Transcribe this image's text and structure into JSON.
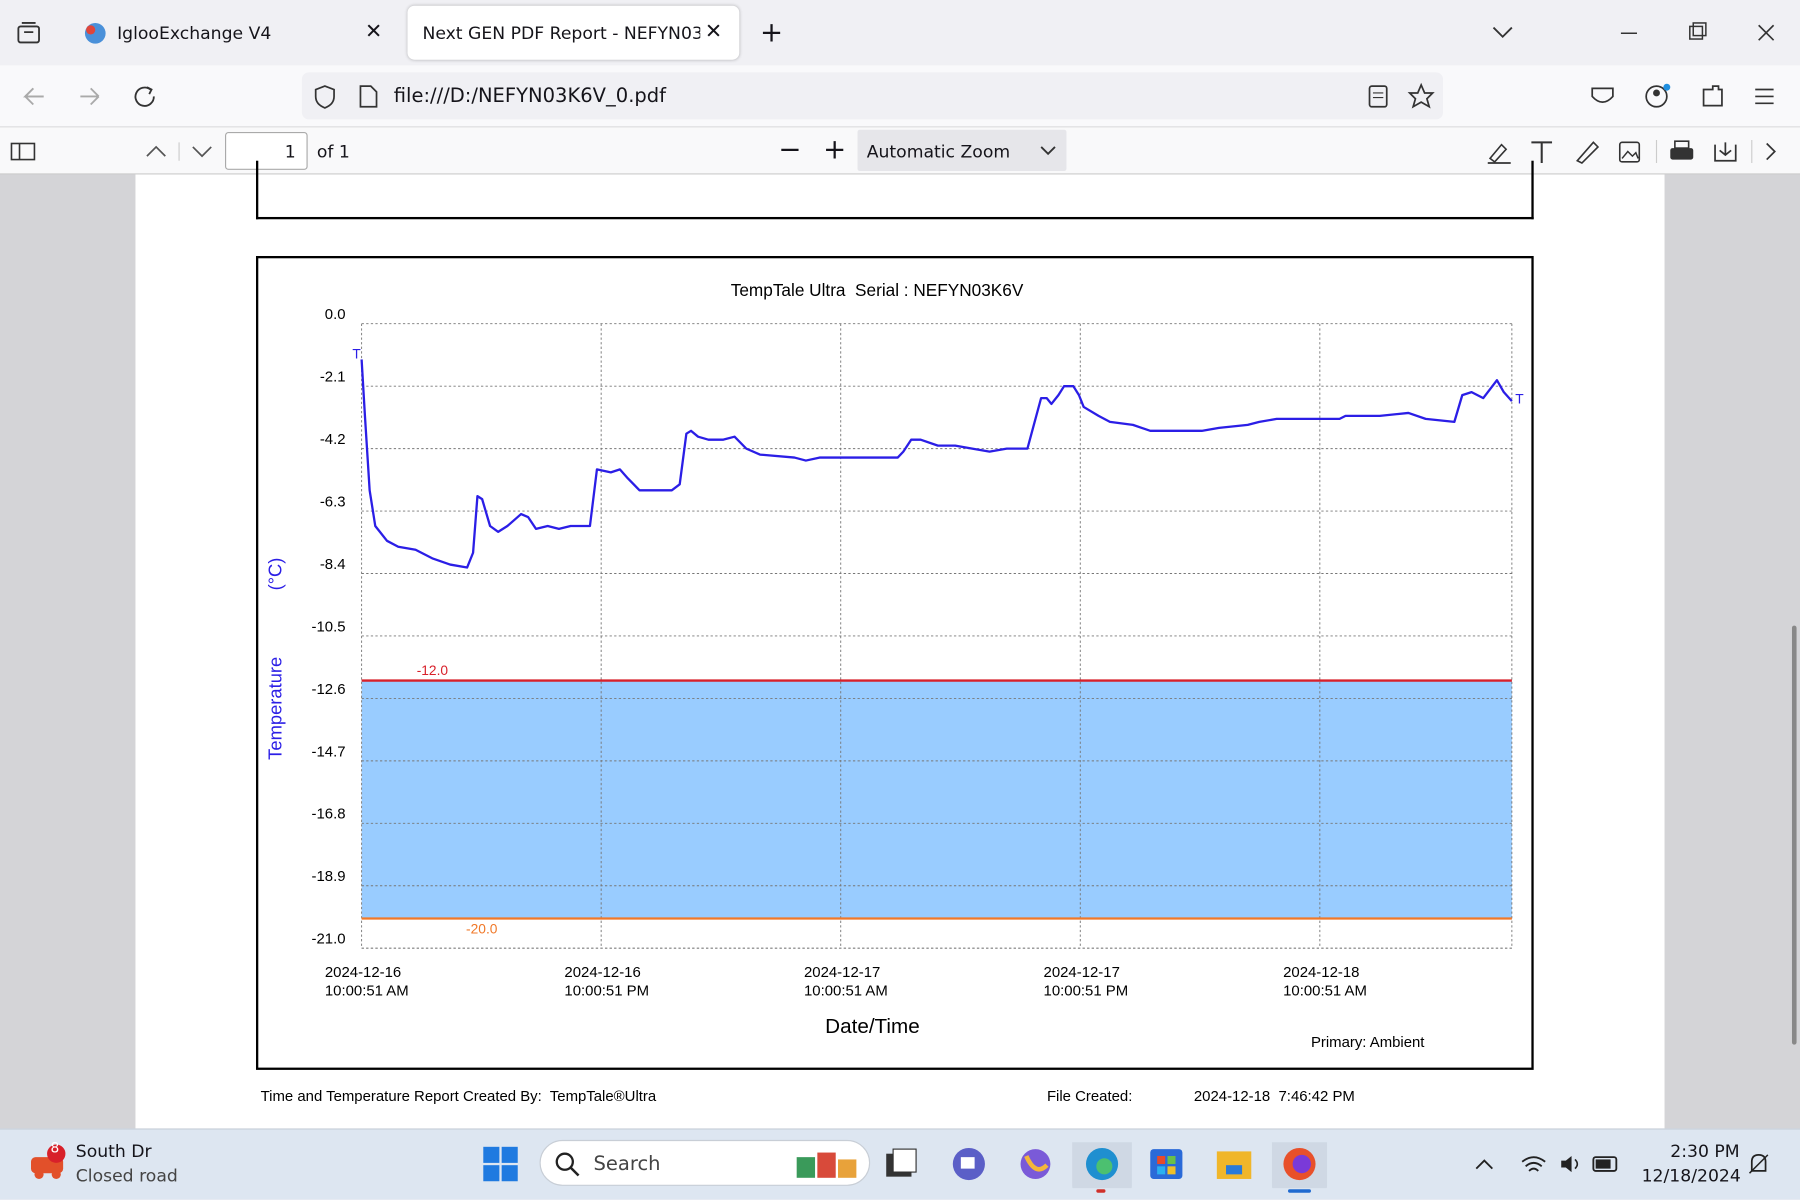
{
  "browser": {
    "tabs": [
      "IglooExchange V4",
      "Next GEN PDF Report - NEFYN03K6V"
    ],
    "url": "file:///D:/NEFYN03K6V_0.pdf"
  },
  "pdf_toolbar": {
    "page": "1",
    "page_count": "of 1",
    "zoom": "Automatic Zoom"
  },
  "chart_data": {
    "type": "line",
    "title": "TempTale Ultra  Serial : NEFYN03K6V",
    "y_label": "Temperature",
    "y_unit": "(°C)",
    "x_label": "Date/Time",
    "note": "Primary: Ambient",
    "color": "#2b1ee6",
    "x": [
      "2024-12-16T10:00:51",
      "2024-12-16T10:11",
      "2024-12-16T10:25",
      "2024-12-16T10:42",
      "2024-12-16T11:17",
      "2024-12-16T11:51",
      "2024-12-16T12:43",
      "2024-12-16T13:35",
      "2024-12-16T14:27",
      "2024-12-16T15:18",
      "2024-12-16T15:36",
      "2024-12-16T15:49",
      "2024-12-16T16:03",
      "2024-12-16T16:27",
      "2024-12-16T16:51",
      "2024-12-16T17:19",
      "2024-12-16T18:00",
      "2024-12-16T18:21",
      "2024-12-16T18:45",
      "2024-12-16T19:20",
      "2024-12-16T19:54",
      "2024-12-16T20:29",
      "2024-12-16T21:27",
      "2024-12-16T21:48",
      "2024-12-16T22:30",
      "2024-12-16T22:57",
      "2024-12-16T23:21",
      "2024-12-16T23:56",
      "2024-12-17T00:48",
      "2024-12-17T01:33",
      "2024-12-17T01:57",
      "2024-12-17T02:17",
      "2024-12-17T02:31",
      "2024-12-17T02:52",
      "2024-12-17T03:23",
      "2024-12-17T04:08",
      "2024-12-17T04:42",
      "2024-12-17T05:17",
      "2024-12-17T05:58",
      "2024-12-17T07:42",
      "2024-12-17T08:16",
      "2024-12-17T08:57",
      "2024-12-17T10:34",
      "2024-12-17T12:52",
      "2024-12-17T13:09",
      "2024-12-17T13:33",
      "2024-12-17T14:01",
      "2024-12-17T14:53",
      "2024-12-17T15:45",
      "2024-12-17T16:36",
      "2024-12-17T17:28",
      "2024-12-17T18:20",
      "2024-12-17T19:22",
      "2024-12-17T19:39",
      "2024-12-17T20:03",
      "2024-12-17T20:20",
      "2024-12-17T20:34",
      "2024-12-17T20:55",
      "2024-12-17T21:12",
      "2024-12-17T21:40",
      "2024-12-17T21:57",
      "2024-12-17T22:11",
      "2024-12-17T22:56",
      "2024-12-17T23:30",
      "2024-12-18T00:39",
      "2024-12-18T01:31",
      "2024-12-18T04:06",
      "2024-12-18T04:58",
      "2024-12-18T06:24",
      "2024-12-18T06:59",
      "2024-12-18T07:51",
      "2024-12-18T11:00",
      "2024-12-18T11:18",
      "2024-12-18T13:01",
      "2024-12-18T14:27",
      "2024-12-18T15:19",
      "2024-12-18T16:45",
      "2024-12-18T17:09",
      "2024-12-18T17:37",
      "2024-12-18T18:12",
      "2024-12-18T18:53",
      "2024-12-18T19:14",
      "2024-12-18T19:38"
    ],
    "values": [
      -1.2,
      -3.1,
      -5.6,
      -6.8,
      -7.3,
      -7.5,
      -7.6,
      -7.9,
      -8.1,
      -8.2,
      -7.7,
      -5.8,
      -5.9,
      -6.8,
      -7.0,
      -6.8,
      -6.4,
      -6.5,
      -6.9,
      -6.8,
      -6.9,
      -6.8,
      -6.8,
      -4.9,
      -5.0,
      -4.9,
      -5.2,
      -5.6,
      -5.6,
      -5.6,
      -5.4,
      -3.7,
      -3.6,
      -3.8,
      -3.9,
      -3.9,
      -3.8,
      -4.2,
      -4.4,
      -4.5,
      -4.6,
      -4.5,
      -4.5,
      -4.5,
      -4.3,
      -3.9,
      -3.9,
      -4.1,
      -4.1,
      -4.2,
      -4.3,
      -4.2,
      -4.2,
      -3.5,
      -2.5,
      -2.5,
      -2.7,
      -2.4,
      -2.1,
      -2.1,
      -2.4,
      -2.8,
      -3.1,
      -3.3,
      -3.4,
      -3.6,
      -3.6,
      -3.5,
      -3.4,
      -3.3,
      -3.2,
      -3.2,
      -3.1,
      -3.1,
      -3.0,
      -3.2,
      -3.3,
      -2.4,
      -2.3,
      -2.5,
      -1.9,
      -2.3,
      -2.6
    ],
    "xlim": [
      "2024-12-16T10:00:51",
      "2024-12-18T19:38"
    ],
    "xticks": [
      {
        "value": "2024-12-16T10:00:51",
        "label": "2024-12-16\n10:00:51 AM"
      },
      {
        "value": "2024-12-16T22:00:51",
        "label": "2024-12-16\n10:00:51 PM"
      },
      {
        "value": "2024-12-17T10:00:51",
        "label": "2024-12-17\n10:00:51 AM"
      },
      {
        "value": "2024-12-17T22:00:51",
        "label": "2024-12-17\n10:00:51 PM"
      },
      {
        "value": "2024-12-18T10:00:51",
        "label": "2024-12-18\n10:00:51 AM"
      }
    ],
    "ylim": [
      -21,
      0
    ],
    "yticks": [
      {
        "value": 0,
        "label": "0.0"
      },
      -2.1,
      -4.2,
      -6.3,
      -8.4,
      -10.5,
      -12.6,
      -14.7,
      -16.8,
      -18.9,
      {
        "value": -21,
        "label": "-21.0"
      }
    ],
    "grid": true,
    "thresholds": [
      {
        "value": -12,
        "label": "-12.0",
        "color": "#d8202a"
      },
      {
        "value": -20,
        "label": "-20.0",
        "color": "#f07828"
      }
    ],
    "band_color": "#99ccff",
    "end_markers": [
      "T",
      "T"
    ]
  },
  "report_footer": {
    "created_by": "Time and Temperature Report Created By:  TempTale®Ultra",
    "file_created_label": "File Created:",
    "file_created": "2024-12-18  7:46:42 PM"
  },
  "taskbar": {
    "weather_badge": "8",
    "weather_title": "South Dr",
    "weather_subtitle": "Closed road",
    "search": "Search",
    "time": "2:30 PM",
    "date": "12/18/2024"
  }
}
